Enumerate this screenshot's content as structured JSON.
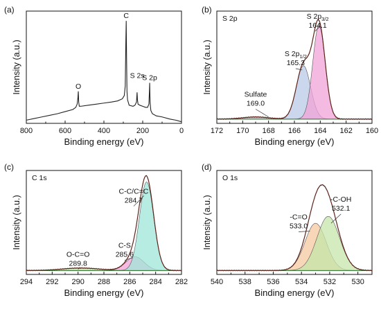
{
  "colors": {
    "raw": "#222222",
    "envelope": "#8b2a1c",
    "baseline": "#2a7a2a",
    "pink": "#f2a3d8",
    "blue": "#b9c9e6",
    "gray": "#bfbfbf",
    "teal": "#9fe6d8",
    "green": "#c6e5a9",
    "orange": "#f6c9a2"
  },
  "chart_data": [
    {
      "id": "a",
      "panel_label": "(a)",
      "type": "line",
      "title": "",
      "xlabel": "Binding energy (eV)",
      "ylabel": "Intensity (a.u.)",
      "xlim": [
        800,
        0
      ],
      "x_ticks": [
        800,
        600,
        400,
        200,
        0
      ],
      "y_ticks": false,
      "annotations": [
        {
          "text": "O",
          "x": 532,
          "y": 0.3
        },
        {
          "text": "C",
          "x": 285,
          "y": 0.96
        },
        {
          "text": "S 2s",
          "x": 228,
          "y": 0.4
        },
        {
          "text": "S 2p",
          "x": 164,
          "y": 0.38
        }
      ],
      "series": [
        {
          "x": [
            800,
            760,
            720,
            680,
            640,
            600,
            560,
            545,
            538,
            534,
            532,
            530,
            527,
            520,
            480,
            440,
            400,
            360,
            330,
            305,
            295,
            290,
            287,
            285,
            283,
            281,
            278,
            270,
            250,
            240,
            232,
            229,
            227,
            224,
            215,
            200,
            185,
            175,
            168,
            165,
            164,
            162,
            158,
            150,
            130,
            100,
            60,
            30,
            10,
            0
          ],
          "y": [
            0.03,
            0.045,
            0.06,
            0.075,
            0.09,
            0.11,
            0.13,
            0.15,
            0.18,
            0.24,
            0.3,
            0.2,
            0.16,
            0.16,
            0.17,
            0.18,
            0.19,
            0.2,
            0.21,
            0.23,
            0.26,
            0.35,
            0.75,
            0.96,
            0.6,
            0.3,
            0.22,
            0.17,
            0.16,
            0.17,
            0.2,
            0.29,
            0.22,
            0.18,
            0.17,
            0.16,
            0.15,
            0.15,
            0.18,
            0.32,
            0.38,
            0.2,
            0.12,
            0.09,
            0.07,
            0.06,
            0.04,
            0.03,
            0.02,
            0.015
          ]
        }
      ]
    },
    {
      "id": "b",
      "panel_label": "(b)",
      "type": "area",
      "title": "S 2p",
      "xlabel": "Binding energy (eV)",
      "ylabel": "Intensity (a.u.)",
      "xlim": [
        172,
        160
      ],
      "x_ticks": [
        172,
        170,
        168,
        166,
        164,
        162,
        160
      ],
      "y_ticks": false,
      "baseline": 0.04,
      "peaks": [
        {
          "center": 169.0,
          "height": 0.02,
          "sigma": 1.0,
          "fill": "gray",
          "label": [
            "Sulfate",
            "169.0"
          ]
        },
        {
          "center": 165.3,
          "height": 0.5,
          "sigma": 0.55,
          "fill": "blue",
          "label": [
            "S 2p",
            "1/2",
            "165.3"
          ]
        },
        {
          "center": 164.1,
          "height": 0.88,
          "sigma": 0.48,
          "fill": "pink",
          "label": [
            "S 2p",
            "3/2",
            "164.1"
          ]
        }
      ],
      "annotations": [
        {
          "lines": [
            "Sulfate",
            "169.0"
          ],
          "x": 169.0,
          "y": 0.25
        },
        {
          "lines": [
            "S 2p1/2",
            "165.3"
          ],
          "x": 165.9,
          "y": 0.63
        },
        {
          "lines": [
            "S 2p3/2",
            "164.1"
          ],
          "x": 164.2,
          "y": 0.98
        }
      ]
    },
    {
      "id": "c",
      "panel_label": "(c)",
      "type": "area",
      "title": "C 1s",
      "xlabel": "Binding energy (eV)",
      "ylabel": "Intensity (a.u.)",
      "xlim": [
        294,
        282
      ],
      "x_ticks": [
        294,
        292,
        290,
        288,
        286,
        284,
        282
      ],
      "y_ticks": false,
      "baseline": 0.04,
      "peaks": [
        {
          "center": 289.8,
          "height": 0.025,
          "sigma": 1.4,
          "fill": "green",
          "label": [
            "O-C=O",
            "289.8"
          ]
        },
        {
          "center": 285.6,
          "height": 0.14,
          "sigma": 0.7,
          "fill": "pink",
          "label": [
            "C-S",
            "285.6"
          ]
        },
        {
          "center": 284.7,
          "height": 0.9,
          "sigma": 0.55,
          "fill": "teal",
          "label": [
            "C-C/C=C",
            "284.7"
          ]
        }
      ],
      "annotations": [
        {
          "lines": [
            "O-C=O",
            "289.8"
          ],
          "x": 290.0,
          "y": 0.18
        },
        {
          "lines": [
            "C-S",
            "285.6"
          ],
          "x": 286.4,
          "y": 0.27
        },
        {
          "lines": [
            "C-C/C=C",
            "284.7"
          ],
          "x": 285.7,
          "y": 0.82
        }
      ]
    },
    {
      "id": "d",
      "panel_label": "(d)",
      "type": "area",
      "title": "O 1s",
      "xlabel": "Binding energy (eV)",
      "ylabel": "Intensity (a.u.)",
      "xlim": [
        540,
        529
      ],
      "x_ticks": [
        540,
        538,
        536,
        534,
        532,
        530
      ],
      "y_ticks": false,
      "baseline": 0.04,
      "peaks": [
        {
          "center": 533.0,
          "height": 0.48,
          "sigma": 0.75,
          "fill": "orange",
          "label": [
            "-C=O",
            "533.0"
          ]
        },
        {
          "center": 532.1,
          "height": 0.55,
          "sigma": 0.8,
          "fill": "green",
          "label": [
            "-C-OH",
            "532.1"
          ]
        }
      ],
      "annotations": [
        {
          "lines": [
            "-C=O",
            "533.0"
          ],
          "x": 534.2,
          "y": 0.56
        },
        {
          "lines": [
            "-C-OH",
            "532.1"
          ],
          "x": 531.2,
          "y": 0.74
        }
      ]
    }
  ]
}
